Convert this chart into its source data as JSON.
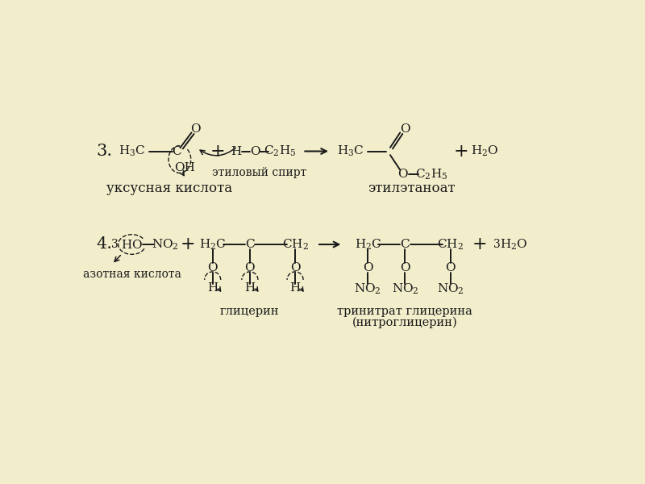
{
  "bg_color": "#f2eecc",
  "line_color": "#1a1a1a",
  "text_color": "#1a1a1a",
  "label_uksusnaya": "уксусная кислота",
  "label_etilovyi": "этиловый спирт",
  "label_etiletanoat": "этилэтаноат",
  "label_azotnaya": "азотная кислота",
  "label_glicerin": "глицерин",
  "label_trinitrat": "тринитрат глицерина",
  "label_nitroglicerin": "(нитроглицерин)"
}
